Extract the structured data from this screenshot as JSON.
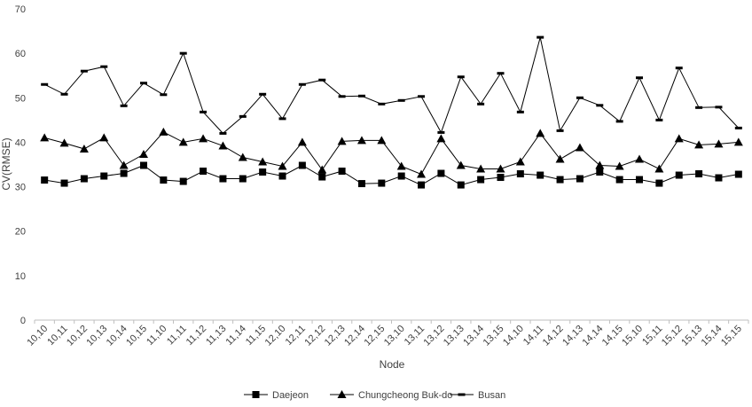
{
  "chart_data": {
    "type": "line",
    "title": "",
    "xlabel": "Node",
    "ylabel": "CV(RMSE)",
    "ylim": [
      0,
      70
    ],
    "yticks": [
      0,
      10,
      20,
      30,
      40,
      50,
      60,
      70
    ],
    "grid": false,
    "legend_position": "bottom",
    "categories": [
      "10,10",
      "10,11",
      "10,12",
      "10,13",
      "10,14",
      "10,15",
      "11,10",
      "11,11",
      "11,12",
      "11,13",
      "11,14",
      "11,15",
      "12,10",
      "12,11",
      "12,12",
      "12,13",
      "12,14",
      "12,15",
      "13,10",
      "13,11",
      "13,12",
      "13,13",
      "13,14",
      "13,15",
      "14,10",
      "14,11",
      "14,12",
      "14,13",
      "14,14",
      "14,15",
      "15,10",
      "15,11",
      "15,12",
      "15,13",
      "15,14",
      "15,15"
    ],
    "series": [
      {
        "name": "Daejeon",
        "marker": "square",
        "color": "#000000",
        "values": [
          31.5,
          30.8,
          31.8,
          32.4,
          33.0,
          34.8,
          31.5,
          31.2,
          33.5,
          31.8,
          31.8,
          33.3,
          32.4,
          34.8,
          32.2,
          33.5,
          30.7,
          30.8,
          32.4,
          30.4,
          33.0,
          30.4,
          31.6,
          32.1,
          32.9,
          32.6,
          31.6,
          31.8,
          33.3,
          31.6,
          31.6,
          30.8,
          32.6,
          32.9,
          32.0,
          32.8
        ]
      },
      {
        "name": "Chungcheong Buk-do",
        "marker": "triangle",
        "color": "#000000",
        "values": [
          41.0,
          39.8,
          38.5,
          41.0,
          34.8,
          37.3,
          42.3,
          40.0,
          40.8,
          39.2,
          36.6,
          35.6,
          34.6,
          40.0,
          33.8,
          40.2,
          40.4,
          40.4,
          34.6,
          32.8,
          40.8,
          34.8,
          34.0,
          34.0,
          35.6,
          42.0,
          36.2,
          38.8,
          34.8,
          34.6,
          36.2,
          34.0,
          40.8,
          39.4,
          39.6,
          40.0
        ]
      },
      {
        "name": "Busan",
        "marker": "dash",
        "color": "#000000",
        "values": [
          53.0,
          50.8,
          56.0,
          57.0,
          48.2,
          53.3,
          50.7,
          60.0,
          46.8,
          42.0,
          45.8,
          50.8,
          45.3,
          53.0,
          54.0,
          50.3,
          50.4,
          48.6,
          49.4,
          50.3,
          42.2,
          54.7,
          48.6,
          55.5,
          46.8,
          63.6,
          42.6,
          50.0,
          48.3,
          44.7,
          54.5,
          45.0,
          56.7,
          47.8,
          47.9,
          43.2
        ]
      }
    ]
  }
}
